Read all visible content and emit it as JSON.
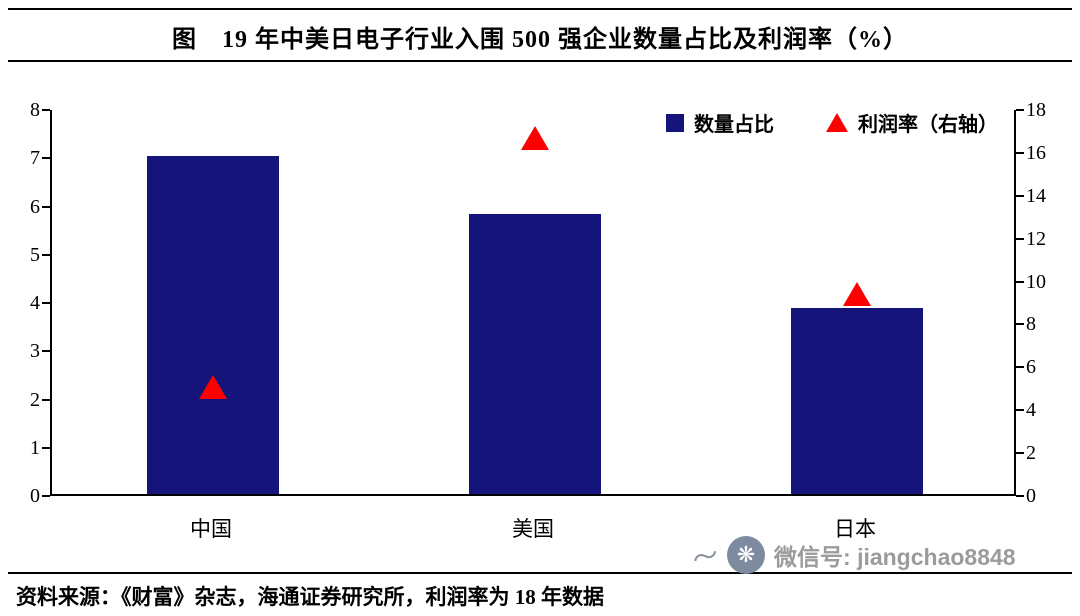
{
  "title": "图　19 年中美日电子行业入围 500 强企业数量占比及利润率（%）",
  "source_note": "资料来源：《财富》杂志，海通证券研究所，利润率为 18 年数据",
  "watermark": {
    "flourish": "〜",
    "icon_glyph": "❋",
    "text": "微信号: jiangchao8848"
  },
  "colors": {
    "bar": "#14147A",
    "marker": "#FD0000",
    "axis": "#000000",
    "watermark_text": "#9b9b9b",
    "watermark_icon_bg": "#7d8aa0"
  },
  "chart_data": {
    "type": "bar",
    "title": "19 年中美日电子行业入围 500 强企业数量占比及利润率（%）",
    "categories": [
      "中国",
      "美国",
      "日本"
    ],
    "series": [
      {
        "name": "数量占比",
        "type": "bar",
        "axis": "left",
        "values": [
          7.0,
          5.8,
          3.85
        ]
      },
      {
        "name": "利润率（右轴）",
        "type": "triangle-marker",
        "axis": "right",
        "values": [
          5.1,
          16.7,
          9.4
        ]
      }
    ],
    "left_axis": {
      "min": 0,
      "max": 8,
      "ticks": [
        0,
        1,
        2,
        3,
        4,
        5,
        6,
        7,
        8
      ]
    },
    "right_axis": {
      "min": 0,
      "max": 18,
      "ticks": [
        0,
        2,
        4,
        6,
        8,
        10,
        12,
        14,
        16,
        18
      ]
    },
    "legend_position": "top-right",
    "grid": false
  }
}
